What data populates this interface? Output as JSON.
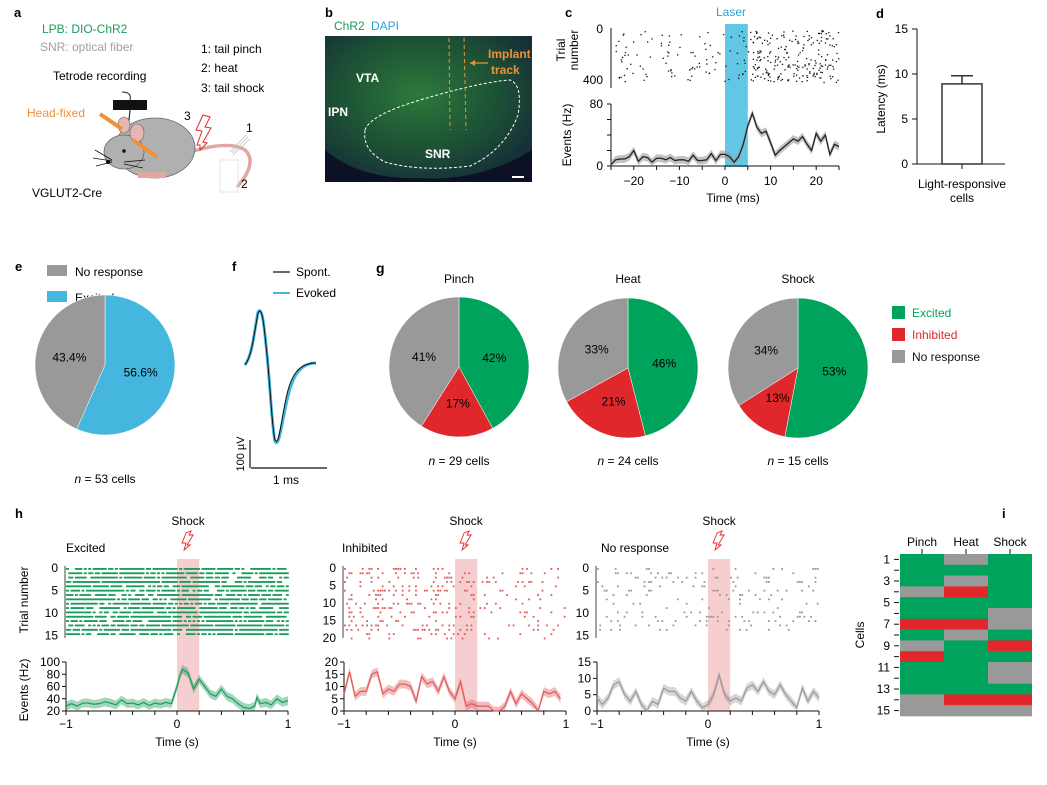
{
  "panels": {
    "a": {
      "label": "a",
      "line1": "LPB: DIO-ChR2",
      "line2": "SNR: optical fiber",
      "tetrode": "Tetrode recording",
      "head_fixed": "Head-fixed",
      "strain": "VGLUT2-Cre",
      "stim1": "1: tail pinch",
      "stim2": "2: heat",
      "stim3": "3: tail shock",
      "n1": "1",
      "n2": "2",
      "n3": "3",
      "colors": {
        "chr2": "#1a9c5a",
        "fiber": "#a0a0a0",
        "headfix": "#f0913a",
        "mouse": "#b0b0b0",
        "tail": "#e0a8a0"
      }
    },
    "b": {
      "label": "b",
      "chr2": "ChR2",
      "dapi": "DAPI",
      "vta": "VTA",
      "ipn": "IPN",
      "snr": "SNR",
      "implant1": "Implant",
      "implant2": "track",
      "colors": {
        "chr2": "#1a9c5a",
        "dapi": "#2aa3d8",
        "implant": "#f0913a"
      }
    },
    "c": {
      "label": "c"
    },
    "d": {
      "label": "d"
    },
    "e": {
      "label": "e"
    },
    "f": {
      "label": "f",
      "legend_spont": "Spont.",
      "legend_evoked": "Evoked",
      "scale_v": "100 µV",
      "scale_t": "1 ms",
      "colors": {
        "spont": "#111111",
        "evoked": "#45b6de"
      }
    },
    "g": {
      "label": "g"
    },
    "h": {
      "label": "h"
    },
    "i": {
      "label": "i"
    }
  },
  "chart_data": [
    {
      "id": "c-raster",
      "type": "scatter",
      "title": "Laser",
      "ylabel": "Trial number",
      "yticks": [
        "0",
        "400"
      ],
      "ylim": [
        0,
        400
      ],
      "xlim": [
        -25,
        25
      ],
      "laser_window_ms": [
        0,
        5
      ],
      "description": "spike raster; sparse before laser, dense after ~5 ms"
    },
    {
      "id": "c-psth",
      "type": "line",
      "xlabel": "Time (ms)",
      "ylabel": "Events (Hz)",
      "xlim": [
        -25,
        25
      ],
      "ylim": [
        0,
        80
      ],
      "xticks": [
        "−20",
        "−10",
        "0",
        "10",
        "20"
      ],
      "yticks": [
        "0",
        "80"
      ],
      "x": [
        -25,
        -24,
        -23,
        -22,
        -21,
        -20,
        -19,
        -18,
        -17,
        -16,
        -15,
        -14,
        -13,
        -12,
        -11,
        -10,
        -9,
        -8,
        -7,
        -6,
        -5,
        -4,
        -3,
        -2,
        -1,
        0,
        1,
        2,
        3,
        4,
        5,
        6,
        7,
        8,
        9,
        10,
        11,
        12,
        13,
        14,
        15,
        16,
        17,
        18,
        19,
        20,
        21,
        22,
        23,
        24,
        25
      ],
      "values": [
        2,
        8,
        9,
        9,
        12,
        20,
        6,
        12,
        11,
        5,
        10,
        10,
        8,
        11,
        7,
        8,
        8,
        6,
        14,
        7,
        7,
        8,
        16,
        7,
        15,
        15,
        12,
        5,
        12,
        28,
        52,
        68,
        50,
        42,
        45,
        30,
        14,
        20,
        25,
        30,
        35,
        32,
        38,
        28,
        20,
        42,
        32,
        40,
        15,
        28,
        25
      ],
      "laser_window_ms": [
        0,
        5
      ]
    },
    {
      "id": "d-bar",
      "type": "bar",
      "categories": [
        "Light-responsive cells"
      ],
      "xlabel": "Light-responsive cells",
      "values": [
        8.9
      ],
      "error": [
        0.9
      ],
      "ylabel": "Latency (ms)",
      "ylim": [
        0,
        15
      ],
      "yticks": [
        "0",
        "5",
        "10",
        "15"
      ]
    },
    {
      "id": "e-pie",
      "type": "pie",
      "legend": [
        "No response",
        "Excited"
      ],
      "slices": [
        {
          "name": "Excited",
          "value": 56.6,
          "label": "56.6%",
          "color": "#45b6de"
        },
        {
          "name": "No response",
          "value": 43.4,
          "label": "43.4%",
          "color": "#999999"
        }
      ],
      "caption_n": "n",
      "caption": " = 53 cells"
    },
    {
      "id": "g-pies",
      "type": "pie",
      "legend": [
        {
          "name": "Excited",
          "color": "#00a35c"
        },
        {
          "name": "Inhibited",
          "color": "#e0282c"
        },
        {
          "name": "No response",
          "color": "#999999"
        }
      ],
      "pies": [
        {
          "title": "Pinch",
          "caption": " = 29 cells",
          "slices": [
            {
              "name": "Excited",
              "value": 42,
              "label": "42%"
            },
            {
              "name": "Inhibited",
              "value": 17,
              "label": "17%"
            },
            {
              "name": "No response",
              "value": 41,
              "label": "41%"
            }
          ]
        },
        {
          "title": "Heat",
          "caption": " = 24 cells",
          "slices": [
            {
              "name": "Excited",
              "value": 46,
              "label": "46%"
            },
            {
              "name": "Inhibited",
              "value": 21,
              "label": "21%"
            },
            {
              "name": "No response",
              "value": 33,
              "label": "33%"
            }
          ]
        },
        {
          "title": "Shock",
          "caption": " = 15 cells",
          "slices": [
            {
              "name": "Excited",
              "value": 53,
              "label": "53%"
            },
            {
              "name": "Inhibited",
              "value": 13,
              "label": "13%"
            },
            {
              "name": "No response",
              "value": 34,
              "label": "34%"
            }
          ]
        }
      ],
      "caption_n": "n"
    },
    {
      "id": "h-panels",
      "type": "line",
      "stim_label": "Shock",
      "shock_window_s": [
        0,
        0.2
      ],
      "xlabel": "Time (s)",
      "xticks": [
        "−1",
        "0",
        "1"
      ],
      "xlim": [
        -1,
        1
      ],
      "ylabel_raster": "Trial number",
      "ylabel_psth": "Events (Hz)",
      "panels": [
        {
          "title": "Excited",
          "color": "#1a9c5a",
          "raster_yticks": [
            "0",
            "5",
            "10",
            "15"
          ],
          "trials": 16,
          "psth_ylim": [
            20,
            100
          ],
          "psth_yticks": [
            "20",
            "40",
            "60",
            "80",
            "100"
          ],
          "x": [
            -1,
            -0.95,
            -0.9,
            -0.85,
            -0.8,
            -0.75,
            -0.7,
            -0.65,
            -0.6,
            -0.55,
            -0.5,
            -0.45,
            -0.4,
            -0.35,
            -0.3,
            -0.25,
            -0.2,
            -0.15,
            -0.1,
            -0.05,
            0,
            0.03,
            0.05,
            0.1,
            0.15,
            0.2,
            0.25,
            0.3,
            0.35,
            0.4,
            0.45,
            0.5,
            0.55,
            0.6,
            0.65,
            0.7,
            0.72,
            0.75,
            0.8,
            0.85,
            0.9,
            0.95,
            1
          ],
          "values": [
            28,
            32,
            28,
            33,
            33,
            31,
            32,
            35,
            33,
            30,
            38,
            32,
            33,
            30,
            34,
            29,
            33,
            31,
            34,
            32,
            60,
            80,
            88,
            82,
            56,
            72,
            60,
            48,
            44,
            56,
            44,
            40,
            32,
            26,
            24,
            28,
            42,
            32,
            34,
            30,
            40,
            34,
            37
          ]
        },
        {
          "title": "Inhibited",
          "color": "#e05a5a",
          "raster_yticks": [
            "0",
            "5",
            "10",
            "15",
            "20"
          ],
          "trials": 17,
          "psth_ylim": [
            0,
            20
          ],
          "psth_yticks": [
            "0",
            "5",
            "10",
            "15",
            "20"
          ],
          "x": [
            -1,
            -0.95,
            -0.9,
            -0.85,
            -0.8,
            -0.75,
            -0.7,
            -0.65,
            -0.6,
            -0.55,
            -0.5,
            -0.45,
            -0.4,
            -0.35,
            -0.3,
            -0.25,
            -0.2,
            -0.15,
            -0.1,
            -0.05,
            0,
            0.05,
            0.1,
            0.15,
            0.2,
            0.25,
            0.3,
            0.35,
            0.4,
            0.45,
            0.5,
            0.55,
            0.6,
            0.65,
            0.7,
            0.75,
            0.8,
            0.85,
            0.9,
            0.95
          ],
          "values": [
            7,
            16,
            6,
            8,
            8,
            15,
            16,
            7,
            9,
            8,
            11,
            11,
            10,
            4,
            14,
            11,
            12,
            8,
            14,
            8,
            5,
            12,
            2,
            3,
            2,
            2,
            2,
            0,
            0,
            2,
            8,
            3,
            7,
            5,
            3,
            0,
            8,
            7,
            8,
            5
          ]
        },
        {
          "title": "No response",
          "color": "#999999",
          "raster_yticks": [
            "0",
            "5",
            "10",
            "15"
          ],
          "trials": 15,
          "psth_ylim": [
            0,
            15
          ],
          "psth_yticks": [
            "0",
            "5",
            "10",
            "15"
          ],
          "x": [
            -1,
            -0.95,
            -0.9,
            -0.85,
            -0.8,
            -0.75,
            -0.7,
            -0.65,
            -0.6,
            -0.55,
            -0.5,
            -0.45,
            -0.4,
            -0.35,
            -0.3,
            -0.25,
            -0.2,
            -0.15,
            -0.1,
            -0.05,
            0,
            0.05,
            0.1,
            0.15,
            0.2,
            0.25,
            0.3,
            0.35,
            0.4,
            0.45,
            0.5,
            0.55,
            0.6,
            0.65,
            0.7,
            0.75,
            0.8,
            0.85,
            0.9,
            0.95,
            1
          ],
          "values": [
            4,
            2,
            4,
            8,
            9,
            5,
            3,
            6,
            2,
            0,
            3,
            2,
            7,
            6,
            6,
            4,
            3,
            6,
            3,
            1,
            2,
            5,
            11,
            5,
            3,
            4,
            3,
            7,
            8,
            6,
            9,
            6,
            5,
            8,
            5,
            3,
            1,
            7,
            3,
            6,
            4
          ]
        }
      ]
    },
    {
      "id": "i-heatmap",
      "type": "heatmap",
      "columns": [
        "Pinch",
        "Heat",
        "Shock"
      ],
      "ylabel": "Cells",
      "yticks": [
        "1",
        "3",
        "5",
        "7",
        "9",
        "11",
        "13",
        "15"
      ],
      "legend": {
        "E": "Excited",
        "I": "Inhibited",
        "N": "No response"
      },
      "colors": {
        "E": "#00a35c",
        "I": "#e0282c",
        "N": "#999999"
      },
      "rows": [
        [
          "E",
          "N",
          "E"
        ],
        [
          "E",
          "E",
          "E"
        ],
        [
          "E",
          "N",
          "E"
        ],
        [
          "N",
          "I",
          "E"
        ],
        [
          "E",
          "E",
          "E"
        ],
        [
          "E",
          "E",
          "N"
        ],
        [
          "I",
          "I",
          "N"
        ],
        [
          "E",
          "N",
          "E"
        ],
        [
          "N",
          "E",
          "I"
        ],
        [
          "I",
          "E",
          "E"
        ],
        [
          "E",
          "E",
          "N"
        ],
        [
          "E",
          "E",
          "N"
        ],
        [
          "E",
          "E",
          "E"
        ],
        [
          "N",
          "I",
          "I"
        ],
        [
          "N",
          "N",
          "N"
        ]
      ]
    }
  ]
}
